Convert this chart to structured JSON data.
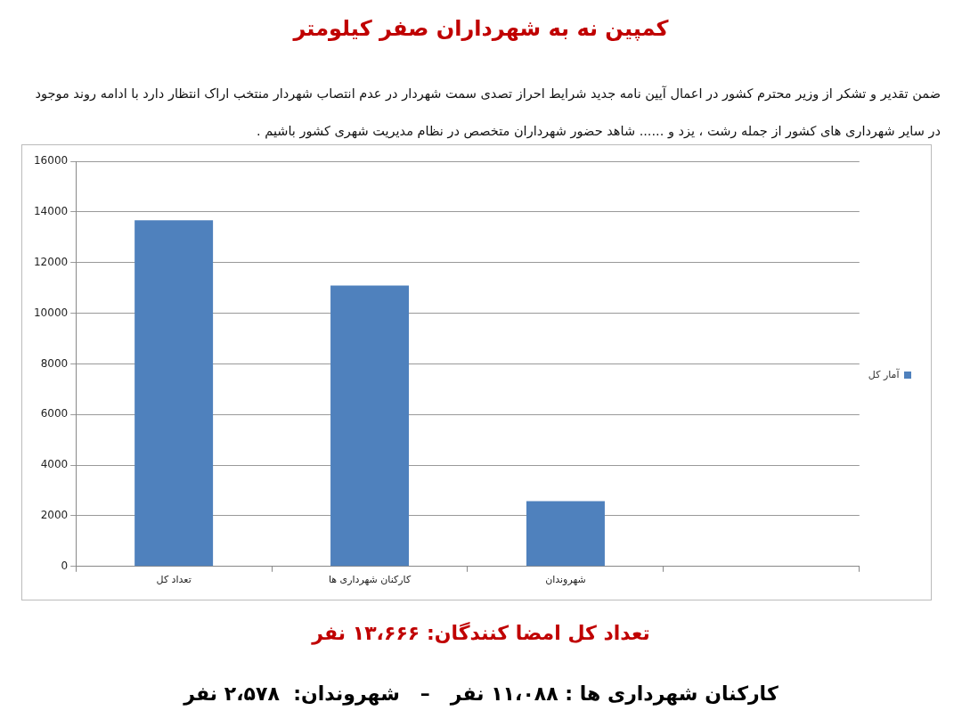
{
  "chart_data": {
    "type": "bar",
    "title": "کمپین نه به شهرداران صفر کیلومتر",
    "subtitle": "ضمن تقدیر و تشکر از وزیر محترم کشور در اعمال آیین نامه جدید شرایط احراز تصدی سمت شهردار در عدم انتصاب شهردار منتخب اراک انتظار دارد با ادامه روند موجود در سایر شهرداری های کشور از جمله رشت ، یزد و ...... شاهد حضور شهرداران متخصص در نظام مدیریت شهری کشور باشیم .",
    "categories": [
      "تعداد کل",
      "کارکنان شهرداری ها",
      "شهروندان",
      null
    ],
    "series": [
      {
        "name": "آمار کل",
        "color": "#4f81bd",
        "values": [
          13666,
          11088,
          2578,
          null
        ]
      }
    ],
    "ylim": [
      0,
      16000
    ],
    "yticks": [
      0,
      2000,
      4000,
      6000,
      8000,
      10000,
      12000,
      14000,
      16000
    ],
    "grid": "y",
    "legend": "right",
    "annotations": [
      "تعداد کل امضا کنندگان: ۱۳،۶۶۶ نفر",
      "کارکنان شهرداری ها : ۱۱،۰۸۸ نفر   –   شهروندان:  ۲،۵۷۸ نفر"
    ]
  }
}
